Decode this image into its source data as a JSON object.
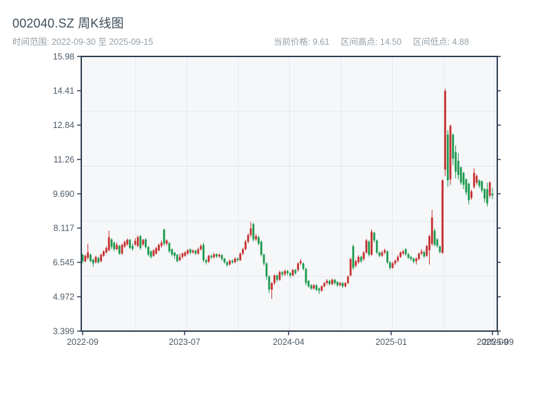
{
  "header": {
    "title": "002040.SZ 周K线图",
    "subtitle": "时间范围: 2022-09-30 至 2025-09-15",
    "stats": [
      {
        "label": "当前价格:",
        "value": "9.61"
      },
      {
        "label": "区间高点:",
        "value": "14.50"
      },
      {
        "label": "区间低点:",
        "value": "4.88"
      }
    ]
  },
  "chart_data": {
    "type": "candlestick",
    "title": "002040.SZ 周K线图",
    "symbol": "002040.SZ",
    "interval": "weekly",
    "date_start": "2022-09-30",
    "date_end": "2025-09-15",
    "current_price": 9.61,
    "range_high": 14.5,
    "range_low": 4.88,
    "grid": true,
    "legend_position": "none",
    "y_axis": {
      "min": 3.399,
      "max": 15.98,
      "tick_labels": [
        "15.98",
        "14.41",
        "12.84",
        "11.26",
        "9.690",
        "8.117",
        "6.545",
        "4.972",
        "3.399"
      ]
    },
    "x_axis": {
      "tick_labels": [
        "2022-09",
        "2023-07",
        "2024-04",
        "2025-01",
        "2025-09",
        "2025-09"
      ]
    },
    "colors": {
      "up": "#c62f2f",
      "down": "#1d9a4e",
      "axis": "#2e3f52",
      "plot_bg": "#f5f7f9",
      "gridline": "#e2e8ee",
      "tick_text": "#4e5c68"
    },
    "candles_ohlc_format": "[open, close, low, high]",
    "candles": [
      [
        6.9,
        6.6,
        6.5,
        6.95
      ],
      [
        6.6,
        6.85,
        6.55,
        6.9
      ],
      [
        6.75,
        7.0,
        6.68,
        7.4
      ],
      [
        6.9,
        6.6,
        6.55,
        6.95
      ],
      [
        6.68,
        6.5,
        6.35,
        6.72
      ],
      [
        6.55,
        6.8,
        6.5,
        6.85
      ],
      [
        6.75,
        6.55,
        6.48,
        6.8
      ],
      [
        6.6,
        6.9,
        6.55,
        6.95
      ],
      [
        6.85,
        7.05,
        6.8,
        7.1
      ],
      [
        7.0,
        7.2,
        6.95,
        7.28
      ],
      [
        7.1,
        7.7,
        7.05,
        8.0
      ],
      [
        7.6,
        7.25,
        7.15,
        7.65
      ],
      [
        7.45,
        7.15,
        7.05,
        7.5
      ],
      [
        7.15,
        7.35,
        7.1,
        7.45
      ],
      [
        7.3,
        6.95,
        6.9,
        7.35
      ],
      [
        6.95,
        7.35,
        6.9,
        7.4
      ],
      [
        7.27,
        7.48,
        7.2,
        7.55
      ],
      [
        7.37,
        7.58,
        7.3,
        7.65
      ],
      [
        7.58,
        7.21,
        7.15,
        7.62
      ],
      [
        7.3,
        7.16,
        7.08,
        7.42
      ],
      [
        7.37,
        7.53,
        7.3,
        7.65
      ],
      [
        7.3,
        7.7,
        7.25,
        7.78
      ],
      [
        7.75,
        7.2,
        7.12,
        7.8
      ],
      [
        7.37,
        7.58,
        7.3,
        7.62
      ],
      [
        7.6,
        7.25,
        7.18,
        7.65
      ],
      [
        7.25,
        6.9,
        6.82,
        7.3
      ],
      [
        7.05,
        6.8,
        6.72,
        7.1
      ],
      [
        6.85,
        7.1,
        6.8,
        7.15
      ],
      [
        6.95,
        7.2,
        6.9,
        7.26
      ],
      [
        7.1,
        7.35,
        7.05,
        7.42
      ],
      [
        7.3,
        7.45,
        7.22,
        7.55
      ],
      [
        8.05,
        7.4,
        7.3,
        8.1
      ],
      [
        7.4,
        7.55,
        7.32,
        7.6
      ],
      [
        7.43,
        7.05,
        6.98,
        7.48
      ],
      [
        7.15,
        6.9,
        6.82,
        7.18
      ],
      [
        7.0,
        6.85,
        6.7,
        7.02
      ],
      [
        6.9,
        6.6,
        6.55,
        6.92
      ],
      [
        6.65,
        6.8,
        6.6,
        6.95
      ],
      [
        6.8,
        6.95,
        6.72,
        7.0
      ],
      [
        6.85,
        7.0,
        6.8,
        7.06
      ],
      [
        6.95,
        7.1,
        6.9,
        7.15
      ],
      [
        7.15,
        7.0,
        6.92,
        7.18
      ],
      [
        7.0,
        7.08,
        6.95,
        7.15
      ],
      [
        7.08,
        6.95,
        6.88,
        7.12
      ],
      [
        6.95,
        7.15,
        6.9,
        7.22
      ],
      [
        7.15,
        7.3,
        7.08,
        7.38
      ],
      [
        7.35,
        6.65,
        6.55,
        7.45
      ],
      [
        6.65,
        6.55,
        6.45,
        6.72
      ],
      [
        6.58,
        6.85,
        6.52,
        6.9
      ],
      [
        6.85,
        6.78,
        6.7,
        6.92
      ],
      [
        6.78,
        6.92,
        6.72,
        6.98
      ],
      [
        6.92,
        6.82,
        6.75,
        6.96
      ],
      [
        6.82,
        6.9,
        6.76,
        6.95
      ],
      [
        6.88,
        6.7,
        6.62,
        6.92
      ],
      [
        6.72,
        6.55,
        6.48,
        6.76
      ],
      [
        6.55,
        6.42,
        6.35,
        6.6
      ],
      [
        6.45,
        6.62,
        6.4,
        6.68
      ],
      [
        6.62,
        6.55,
        6.48,
        6.68
      ],
      [
        6.55,
        6.72,
        6.5,
        6.78
      ],
      [
        6.72,
        6.65,
        6.58,
        6.78
      ],
      [
        6.65,
        6.95,
        6.6,
        7.0
      ],
      [
        6.95,
        7.15,
        6.88,
        7.22
      ],
      [
        7.15,
        7.5,
        7.1,
        7.58
      ],
      [
        7.5,
        7.8,
        7.42,
        7.88
      ],
      [
        7.8,
        8.1,
        7.7,
        8.4
      ],
      [
        8.3,
        7.6,
        7.5,
        8.35
      ],
      [
        7.6,
        7.75,
        7.52,
        7.85
      ],
      [
        7.7,
        7.4,
        7.32,
        7.78
      ],
      [
        7.5,
        6.9,
        6.82,
        7.55
      ],
      [
        6.9,
        6.5,
        6.4,
        6.95
      ],
      [
        6.5,
        5.9,
        5.75,
        6.55
      ],
      [
        5.9,
        5.3,
        5.15,
        5.95
      ],
      [
        5.3,
        5.6,
        4.88,
        5.65
      ],
      [
        5.6,
        5.95,
        5.5,
        6.0
      ],
      [
        5.95,
        5.75,
        5.65,
        6.0
      ],
      [
        5.75,
        6.1,
        5.7,
        6.18
      ],
      [
        6.1,
        6.0,
        5.9,
        6.15
      ],
      [
        6.0,
        6.15,
        5.92,
        6.22
      ],
      [
        6.15,
        6.05,
        5.95,
        6.2
      ],
      [
        6.05,
        5.95,
        5.85,
        6.1
      ],
      [
        5.95,
        6.2,
        5.9,
        6.25
      ],
      [
        6.2,
        6.05,
        5.98,
        6.25
      ],
      [
        6.2,
        6.5,
        6.12,
        6.55
      ],
      [
        6.5,
        6.6,
        6.42,
        6.7
      ],
      [
        6.5,
        6.25,
        6.18,
        6.55
      ],
      [
        6.25,
        5.6,
        5.5,
        6.3
      ],
      [
        5.7,
        5.45,
        5.38,
        5.75
      ],
      [
        5.5,
        5.35,
        5.28,
        5.55
      ],
      [
        5.35,
        5.5,
        5.3,
        5.55
      ],
      [
        5.5,
        5.3,
        5.22,
        5.55
      ],
      [
        5.35,
        5.25,
        5.1,
        5.4
      ],
      [
        5.25,
        5.45,
        5.2,
        5.5
      ],
      [
        5.45,
        5.6,
        5.4,
        5.65
      ],
      [
        5.6,
        5.7,
        5.52,
        5.78
      ],
      [
        5.7,
        5.55,
        5.48,
        5.75
      ],
      [
        5.55,
        5.75,
        5.5,
        5.8
      ],
      [
        5.75,
        5.6,
        5.52,
        5.78
      ],
      [
        5.65,
        5.5,
        5.42,
        5.68
      ],
      [
        5.5,
        5.6,
        5.45,
        5.65
      ],
      [
        5.6,
        5.45,
        5.38,
        5.65
      ],
      [
        5.45,
        5.6,
        5.4,
        5.65
      ],
      [
        5.6,
        5.9,
        5.55,
        5.95
      ],
      [
        5.95,
        6.7,
        5.9,
        6.75
      ],
      [
        7.28,
        6.3,
        6.2,
        7.37
      ],
      [
        6.4,
        6.6,
        6.32,
        6.68
      ],
      [
        6.55,
        6.8,
        6.48,
        6.88
      ],
      [
        6.8,
        6.6,
        6.52,
        6.85
      ],
      [
        6.7,
        7.0,
        6.62,
        7.06
      ],
      [
        7.0,
        7.55,
        6.95,
        7.62
      ],
      [
        7.5,
        6.9,
        6.82,
        7.55
      ],
      [
        6.9,
        7.95,
        6.85,
        8.05
      ],
      [
        7.9,
        7.55,
        7.45,
        7.95
      ],
      [
        7.55,
        7.0,
        6.92,
        7.6
      ],
      [
        7.0,
        6.85,
        6.78,
        7.05
      ],
      [
        6.85,
        7.0,
        6.8,
        7.08
      ],
      [
        7.0,
        7.1,
        6.92,
        7.18
      ],
      [
        7.05,
        6.55,
        6.48,
        7.1
      ],
      [
        6.55,
        6.3,
        6.22,
        6.6
      ],
      [
        6.3,
        6.5,
        6.25,
        6.58
      ],
      [
        6.5,
        6.62,
        6.42,
        6.68
      ],
      [
        6.62,
        6.8,
        6.55,
        6.88
      ],
      [
        6.8,
        7.0,
        6.75,
        7.05
      ],
      [
        6.95,
        7.05,
        6.88,
        7.12
      ],
      [
        7.15,
        6.92,
        6.85,
        7.2
      ],
      [
        6.92,
        6.76,
        6.7,
        6.98
      ],
      [
        6.8,
        6.7,
        6.62,
        6.85
      ],
      [
        6.72,
        6.58,
        6.5,
        6.76
      ],
      [
        6.6,
        6.72,
        6.45,
        6.78
      ],
      [
        6.7,
        6.95,
        6.65,
        7.0
      ],
      [
        6.95,
        7.05,
        6.88,
        7.15
      ],
      [
        7.02,
        6.82,
        6.75,
        7.08
      ],
      [
        6.85,
        7.3,
        6.8,
        7.35
      ],
      [
        7.1,
        7.75,
        6.45,
        7.82
      ],
      [
        7.4,
        8.6,
        7.3,
        8.95
      ],
      [
        8.0,
        7.35,
        7.28,
        8.1
      ],
      [
        7.6,
        7.3,
        7.22,
        7.65
      ],
      [
        7.28,
        7.02,
        6.95,
        7.32
      ],
      [
        6.98,
        10.3,
        6.95,
        10.35
      ],
      [
        10.8,
        14.4,
        10.5,
        14.5
      ],
      [
        12.4,
        10.3,
        10.0,
        12.6
      ],
      [
        10.35,
        12.8,
        10.1,
        12.86
      ],
      [
        12.4,
        11.3,
        11.0,
        12.45
      ],
      [
        11.6,
        10.7,
        10.4,
        11.9
      ],
      [
        11.2,
        10.55,
        10.35,
        11.55
      ],
      [
        10.9,
        10.2,
        10.1,
        10.95
      ],
      [
        10.65,
        10.1,
        9.9,
        10.7
      ],
      [
        10.35,
        9.75,
        9.62,
        10.4
      ],
      [
        10.15,
        9.4,
        9.2,
        10.2
      ],
      [
        9.5,
        9.8,
        9.42,
        9.88
      ],
      [
        10.0,
        10.65,
        9.92,
        10.85
      ],
      [
        10.2,
        10.5,
        10.1,
        10.58
      ],
      [
        10.3,
        10.05,
        9.95,
        10.35
      ],
      [
        10.26,
        9.84,
        9.75,
        10.3
      ],
      [
        9.9,
        9.47,
        9.3,
        9.95
      ],
      [
        9.9,
        9.25,
        9.1,
        10.2
      ],
      [
        9.6,
        10.2,
        9.5,
        10.26
      ],
      [
        9.7,
        9.61,
        9.45,
        9.95
      ]
    ]
  }
}
